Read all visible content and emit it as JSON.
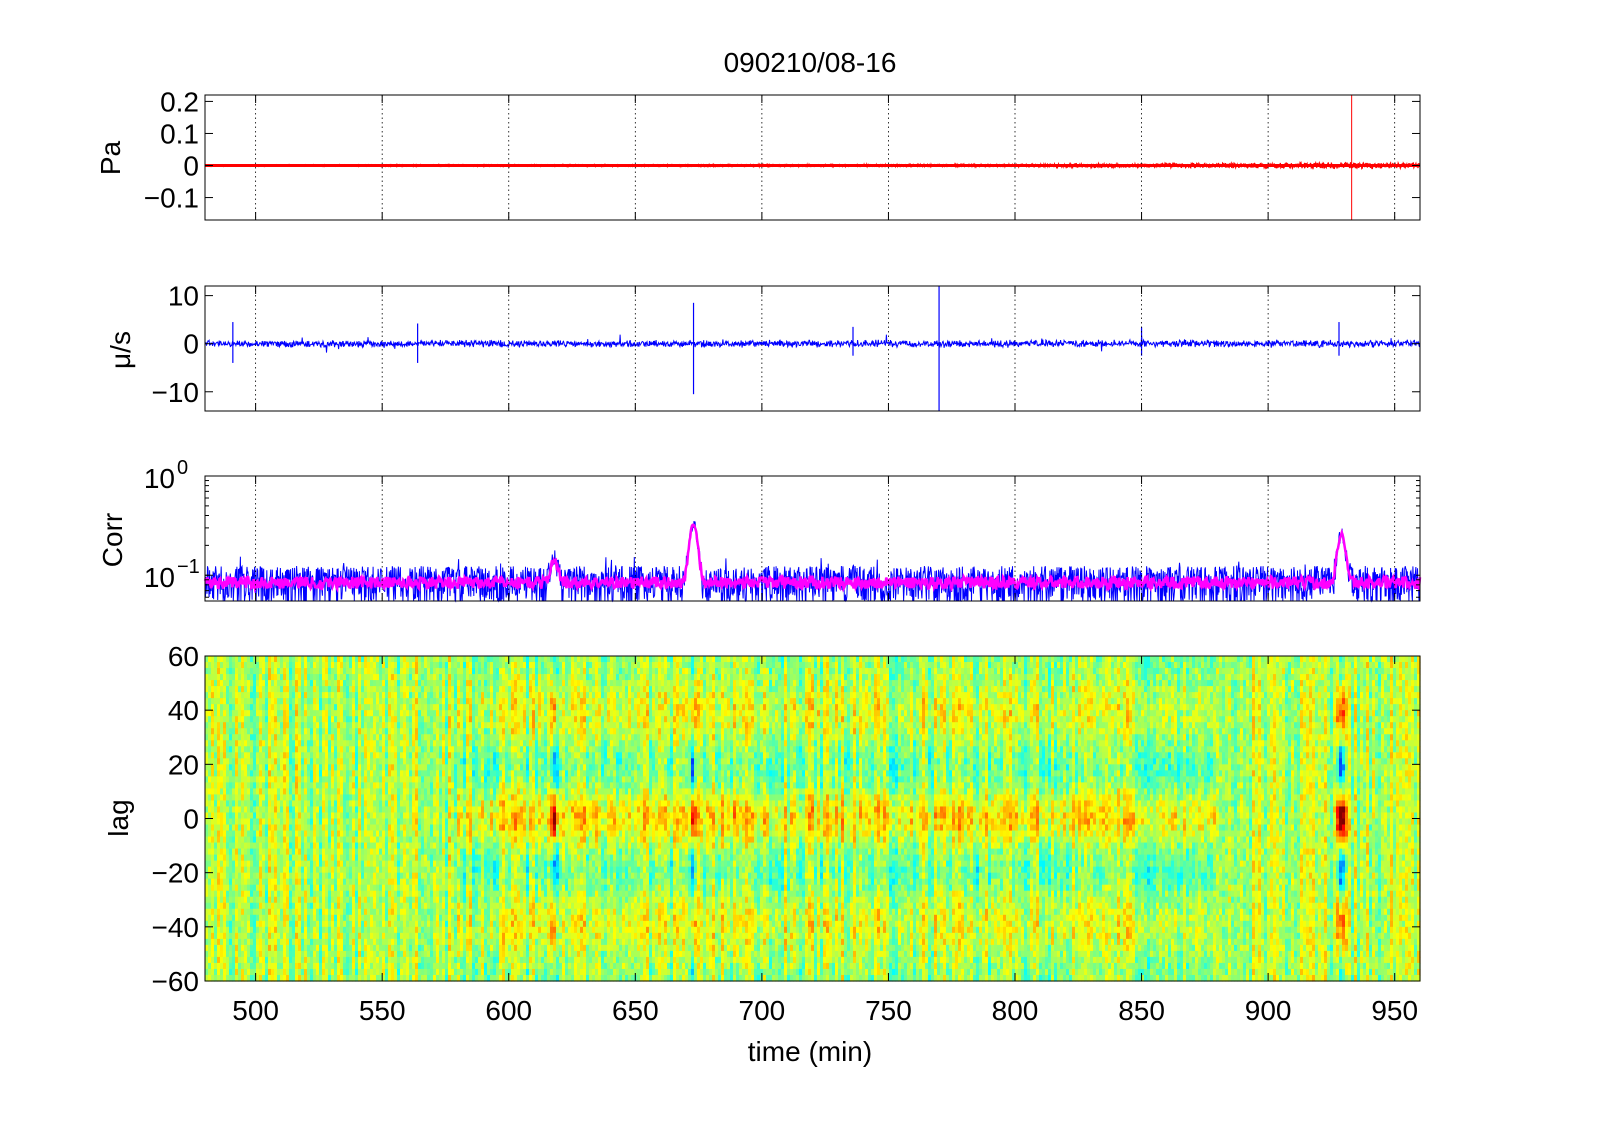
{
  "figure": {
    "title": "090210/08-16"
  },
  "chart_data": [
    {
      "type": "line",
      "ylabel": "Pa",
      "xlim": [
        480,
        960
      ],
      "ylim": [
        -0.17,
        0.22
      ],
      "xticks": [
        500,
        550,
        600,
        650,
        700,
        750,
        800,
        850,
        900,
        950
      ],
      "yticks": [
        -0.1,
        0,
        0.1,
        0.2
      ],
      "ytick_labels": [
        "−0.1",
        "0",
        "0.1",
        "0.2"
      ],
      "grid": "x-dotted",
      "color": "#ff0000",
      "series": [
        {
          "x": [
            480,
            800,
            820,
            900,
            932,
            960
          ],
          "amplitude": [
            0.002,
            0.004,
            0.006,
            0.008,
            0.01,
            0.008
          ]
        }
      ],
      "spikes": [
        {
          "x": 933,
          "y_min": -0.17,
          "y_max": 0.22
        }
      ]
    },
    {
      "type": "line",
      "ylabel": "μ/s",
      "xlim": [
        480,
        960
      ],
      "ylim": [
        -14,
        12
      ],
      "xticks": [
        500,
        550,
        600,
        650,
        700,
        750,
        800,
        850,
        900,
        950
      ],
      "yticks": [
        -10,
        0,
        10
      ],
      "ytick_labels": [
        "−10",
        "0",
        "10"
      ],
      "grid": "x-dotted",
      "color": "#0000ff",
      "baseline_amplitude": 0.6,
      "spikes": [
        {
          "x": 491,
          "y_min": -4,
          "y_max": 4.5
        },
        {
          "x": 564,
          "y_min": -4,
          "y_max": 4.2
        },
        {
          "x": 673,
          "y_min": -10.5,
          "y_max": 8.5
        },
        {
          "x": 736,
          "y_min": -2.5,
          "y_max": 3.5
        },
        {
          "x": 770,
          "y_min": -14,
          "y_max": 12
        },
        {
          "x": 850,
          "y_min": -2.5,
          "y_max": 3.5
        },
        {
          "x": 928,
          "y_min": -2.5,
          "y_max": 4.5
        }
      ]
    },
    {
      "type": "line",
      "ylabel": "Corr",
      "yscale": "log",
      "xlim": [
        480,
        960
      ],
      "ylim": [
        0.055,
        1.0
      ],
      "xticks": [
        500,
        550,
        600,
        650,
        700,
        750,
        800,
        850,
        900,
        950
      ],
      "ytick_labels": [
        {
          "base": "10",
          "exp": "0",
          "value": 1.0
        },
        {
          "base": "10",
          "exp": "−1",
          "value": 0.1
        }
      ],
      "grid": "x-dotted",
      "series": [
        {
          "name": "",
          "color": "#0000ff",
          "baseline": 0.085,
          "spread": 0.03
        },
        {
          "name": "",
          "color": "#ff00ff",
          "baseline": 0.085,
          "spread": 0.012
        }
      ],
      "peaks": [
        {
          "x": 618,
          "y": 0.14
        },
        {
          "x": 673,
          "y": 0.33
        },
        {
          "x": 929,
          "y": 0.26
        }
      ]
    },
    {
      "type": "heatmap",
      "xlabel": "time (min)",
      "ylabel": "lag",
      "xlim": [
        480,
        960
      ],
      "ylim": [
        -60,
        60
      ],
      "xticks": [
        500,
        550,
        600,
        650,
        700,
        750,
        800,
        850,
        900,
        950
      ],
      "yticks": [
        -60,
        -40,
        -20,
        0,
        20,
        40,
        60
      ],
      "ytick_labels": [
        "−60",
        "−40",
        "−20",
        "0",
        "20",
        "40",
        "60"
      ],
      "colormap": "jet",
      "events": [
        {
          "x": 618,
          "strength": 0.8,
          "width_min": 1.5
        },
        {
          "x": 673,
          "strength": 1.0,
          "width_min": 0.8
        },
        {
          "x": 929,
          "strength": 1.0,
          "width_min": 2.0
        }
      ],
      "diffuse_band": {
        "x_from": 580,
        "x_to": 880,
        "strength": 0.25
      }
    }
  ]
}
